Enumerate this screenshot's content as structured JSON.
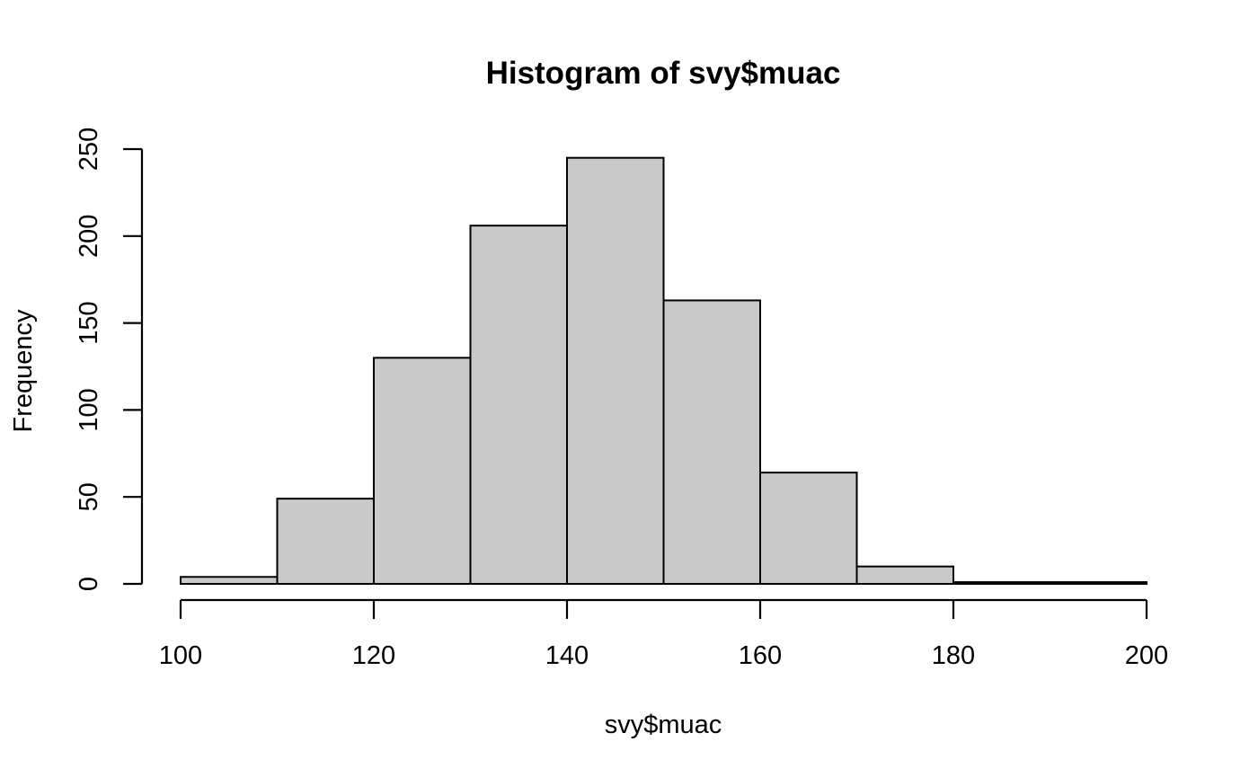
{
  "chart_data": {
    "type": "histogram",
    "title": "Histogram of svy$muac",
    "xlabel": "svy$muac",
    "ylabel": "Frequency",
    "bins": [
      {
        "from": 100,
        "to": 110,
        "count": 4
      },
      {
        "from": 110,
        "to": 120,
        "count": 49
      },
      {
        "from": 120,
        "to": 130,
        "count": 130
      },
      {
        "from": 130,
        "to": 140,
        "count": 206
      },
      {
        "from": 140,
        "to": 150,
        "count": 245
      },
      {
        "from": 150,
        "to": 160,
        "count": 163
      },
      {
        "from": 160,
        "to": 170,
        "count": 64
      },
      {
        "from": 170,
        "to": 180,
        "count": 10
      },
      {
        "from": 180,
        "to": 190,
        "count": 1
      },
      {
        "from": 190,
        "to": 200,
        "count": 1
      }
    ],
    "xlim": [
      100,
      200
    ],
    "ylim": [
      0,
      250
    ],
    "x_ticks": [
      100,
      120,
      140,
      160,
      180,
      200
    ],
    "y_ticks": [
      0,
      50,
      100,
      150,
      200,
      250
    ],
    "colors": {
      "bar_fill": "#c9c9c9",
      "bar_stroke": "#000000"
    },
    "grid": false
  }
}
